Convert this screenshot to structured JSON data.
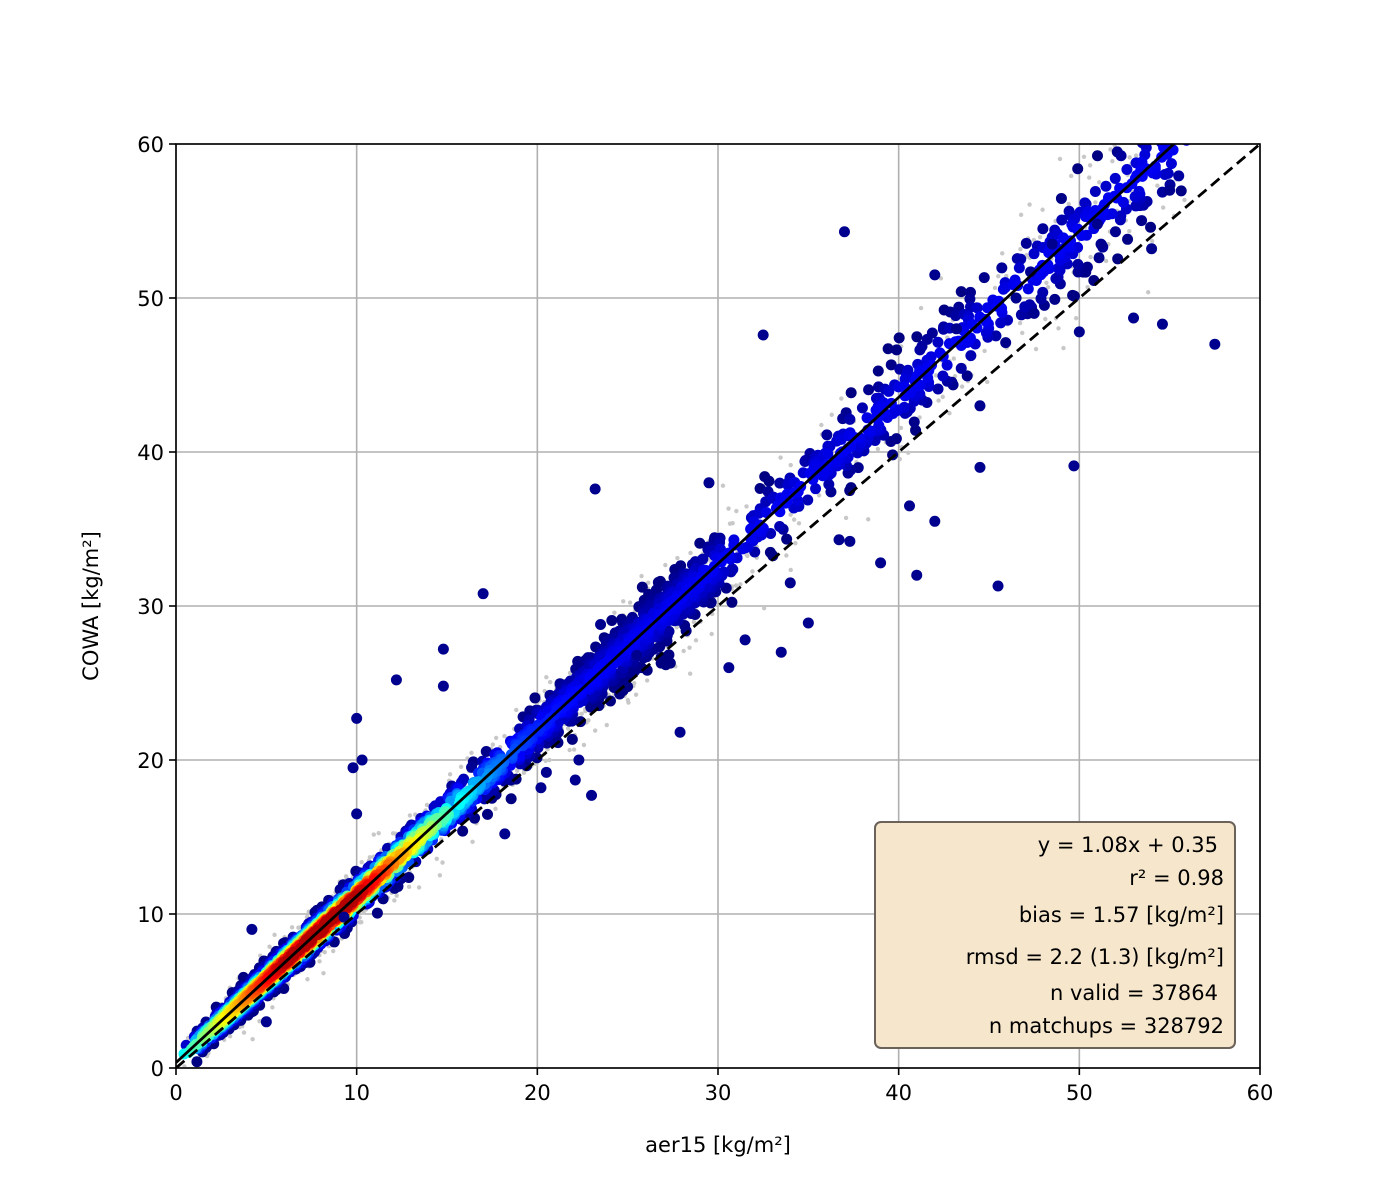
{
  "chart_data": {
    "type": "scatter",
    "xlabel": "aer15 [kg/m²]",
    "ylabel": "COWA [kg/m²]",
    "xlim": [
      0,
      60
    ],
    "ylim": [
      0,
      60
    ],
    "xticks": [
      0,
      10,
      20,
      30,
      40,
      50,
      60
    ],
    "yticks": [
      0,
      10,
      20,
      30,
      40,
      50,
      60
    ],
    "tick_labels_x": [
      "0",
      "10",
      "20",
      "30",
      "40",
      "50",
      "60"
    ],
    "tick_labels_y": [
      "0",
      "10",
      "20",
      "30",
      "40",
      "50",
      "60"
    ],
    "grid": true,
    "fit_line": {
      "slope": 1.08,
      "intercept": 0.35,
      "style": "solid",
      "color": "#000000"
    },
    "identity_line": {
      "slope": 1.0,
      "intercept": 0.0,
      "style": "dashed",
      "color": "#000000"
    },
    "colormap": "jet (density)",
    "background_points_color": "#c8c8c8",
    "stats_box": {
      "placement": "lower-right",
      "fill": "#f6e6cc",
      "lines": [
        "y = 1.08x + 0.35",
        "r² = 0.98",
        "bias = 1.57 [kg/m²]",
        "rmsd = 2.2 (1.3) [kg/m²]",
        "n valid = 37864",
        "n matchups = 328792"
      ]
    },
    "outliers": [
      [
        37.0,
        54.3
      ],
      [
        51.0,
        54.8
      ],
      [
        52.0,
        54.3
      ],
      [
        53.0,
        48.7
      ],
      [
        54.6,
        48.3
      ],
      [
        57.5,
        47.0
      ],
      [
        49.7,
        39.1
      ],
      [
        45.5,
        31.3
      ],
      [
        41.0,
        32.0
      ],
      [
        33.5,
        27.0
      ],
      [
        23.2,
        37.6
      ],
      [
        32.5,
        47.6
      ],
      [
        29.5,
        38.0
      ],
      [
        17.0,
        30.8
      ],
      [
        14.8,
        27.2
      ],
      [
        12.2,
        25.2
      ],
      [
        10.0,
        22.7
      ],
      [
        10.3,
        20.0
      ],
      [
        9.8,
        19.5
      ],
      [
        10.0,
        16.5
      ],
      [
        9.3,
        9.8
      ],
      [
        5.0,
        3.0
      ],
      [
        4.2,
        9.0
      ],
      [
        50.0,
        47.8
      ],
      [
        51.2,
        53.5
      ],
      [
        44.5,
        43.0
      ],
      [
        47.5,
        49.0
      ],
      [
        42.0,
        51.5
      ],
      [
        43.2,
        48.0
      ],
      [
        54.0,
        53.2
      ],
      [
        30.6,
        26.0
      ],
      [
        34.0,
        31.5
      ],
      [
        31.5,
        27.8
      ],
      [
        35.0,
        28.9
      ],
      [
        14.8,
        24.8
      ],
      [
        20.5,
        19.2
      ],
      [
        22.1,
        18.7
      ],
      [
        23.0,
        17.7
      ],
      [
        22.3,
        20.0
      ],
      [
        18.2,
        15.2
      ],
      [
        20.2,
        18.2
      ],
      [
        27.9,
        21.8
      ],
      [
        42.0,
        35.5
      ],
      [
        39.0,
        32.8
      ],
      [
        36.7,
        34.3
      ],
      [
        40.6,
        36.5
      ],
      [
        37.3,
        34.2
      ],
      [
        44.5,
        39.0
      ],
      [
        25.5,
        26.8
      ],
      [
        23.5,
        28.8
      ],
      [
        48.5,
        53.5
      ],
      [
        47.3,
        51.7
      ],
      [
        46.5,
        50.0
      ],
      [
        55.0,
        57.0
      ]
    ]
  }
}
